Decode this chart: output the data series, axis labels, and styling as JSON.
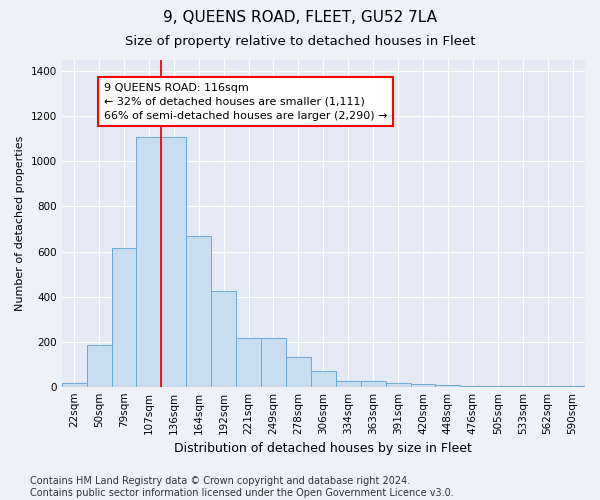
{
  "title": "9, QUEENS ROAD, FLEET, GU52 7LA",
  "subtitle": "Size of property relative to detached houses in Fleet",
  "xlabel": "Distribution of detached houses by size in Fleet",
  "ylabel": "Number of detached properties",
  "categories": [
    "22sqm",
    "50sqm",
    "79sqm",
    "107sqm",
    "136sqm",
    "164sqm",
    "192sqm",
    "221sqm",
    "249sqm",
    "278sqm",
    "306sqm",
    "334sqm",
    "363sqm",
    "391sqm",
    "420sqm",
    "448sqm",
    "476sqm",
    "505sqm",
    "533sqm",
    "562sqm",
    "590sqm"
  ],
  "values": [
    15,
    185,
    615,
    1110,
    1110,
    670,
    425,
    215,
    215,
    130,
    70,
    25,
    25,
    18,
    12,
    8,
    5,
    3,
    2,
    2,
    1
  ],
  "bar_color": "#c9ddf0",
  "bar_edge_color": "#6aaad4",
  "bar_edge_width": 0.7,
  "annotation_line1": "9 QUEENS ROAD: 116sqm",
  "annotation_line2": "← 32% of detached houses are smaller (1,111)",
  "annotation_line3": "66% of semi-detached houses are larger (2,290) →",
  "ylim": [
    0,
    1450
  ],
  "yticks": [
    0,
    200,
    400,
    600,
    800,
    1000,
    1200,
    1400
  ],
  "background_color": "#eef2f8",
  "plot_bg_color": "#e4eaf5",
  "grid_color": "#ffffff",
  "footer_line1": "Contains HM Land Registry data © Crown copyright and database right 2024.",
  "footer_line2": "Contains public sector information licensed under the Open Government Licence v3.0.",
  "title_fontsize": 11,
  "subtitle_fontsize": 9.5,
  "xlabel_fontsize": 9,
  "ylabel_fontsize": 8,
  "tick_fontsize": 7.5,
  "annotation_fontsize": 8,
  "footer_fontsize": 7
}
